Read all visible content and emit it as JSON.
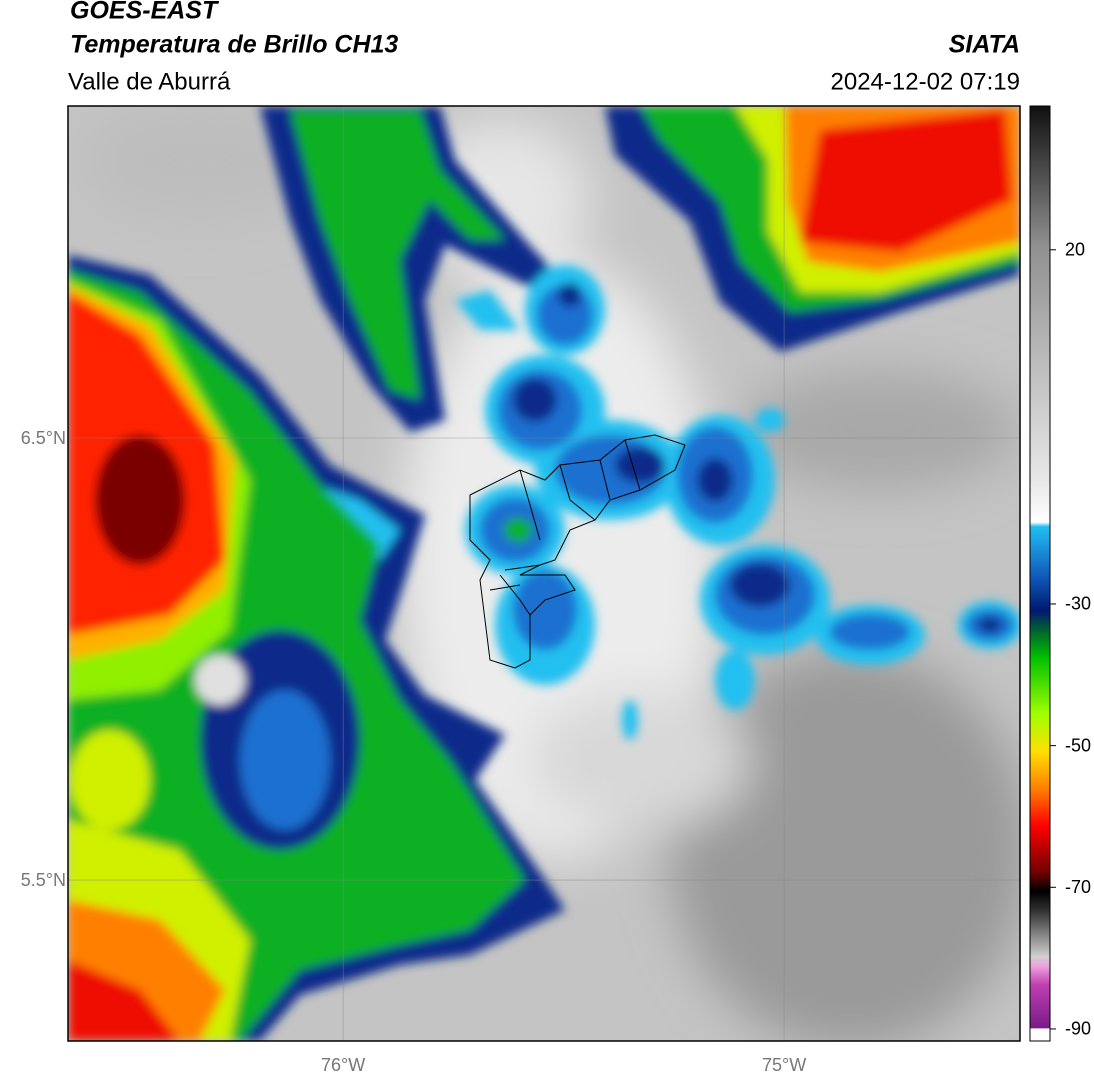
{
  "header": {
    "title": "GOES-EAST",
    "subtitle": "Temperatura de Brillo CH13",
    "region": "Valle de Aburrá",
    "source": "SIATA",
    "datetime": "2024-12-02 07:19"
  },
  "map": {
    "latlim": [
      5.136,
      7.251
    ],
    "lonlim": [
      -76.624,
      -74.465
    ],
    "lat_ticks": [
      {
        "value": 6.5,
        "label": "6.5°N"
      },
      {
        "value": 5.5,
        "label": "5.5°N"
      }
    ],
    "lon_ticks": [
      {
        "value": -76,
        "label": "76°W"
      },
      {
        "value": -75,
        "label": "75°W"
      }
    ]
  },
  "colorbar": {
    "lim": [
      -91.7,
      40.3
    ],
    "ticks": [
      20,
      -30,
      -50,
      -70,
      -90
    ]
  }
}
